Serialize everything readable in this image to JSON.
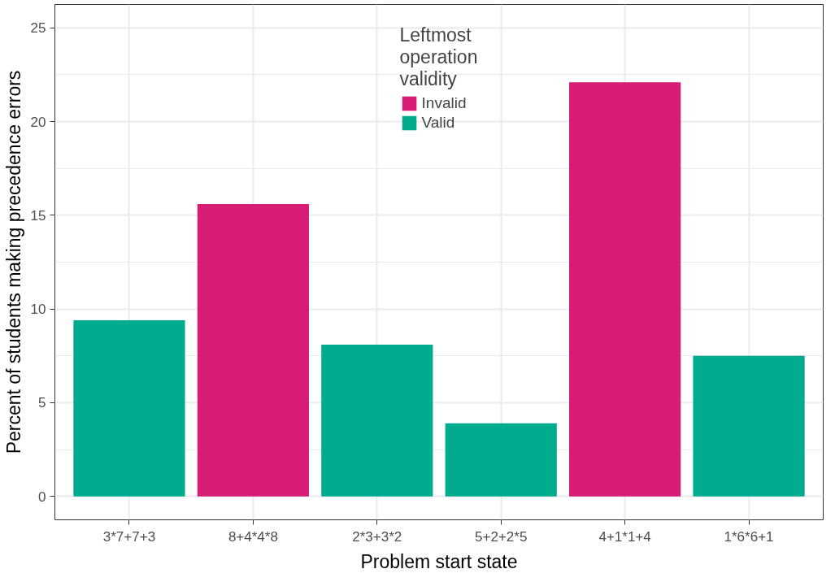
{
  "chart_data": {
    "type": "bar",
    "xlabel": "Problem start state",
    "ylabel": "Percent of students making precedence errors",
    "legend_title": "Leftmost operation validity",
    "categories": [
      "3*7+7+3",
      "8+4*4*8",
      "2*3+3*2",
      "5+2+2*5",
      "4+1*1+4",
      "1*6*6+1"
    ],
    "series": [
      {
        "name": "Invalid",
        "color": "#d81b74",
        "values": [
          null,
          15.6,
          null,
          null,
          22.1,
          null
        ]
      },
      {
        "name": "Valid",
        "color": "#00ab8e",
        "values": [
          9.4,
          null,
          8.1,
          3.9,
          null,
          7.5
        ]
      }
    ],
    "ylim": [
      -1.25,
      26.25
    ],
    "yticks": [
      0,
      5,
      10,
      15,
      20,
      25
    ],
    "grid": true,
    "legend": "top"
  }
}
